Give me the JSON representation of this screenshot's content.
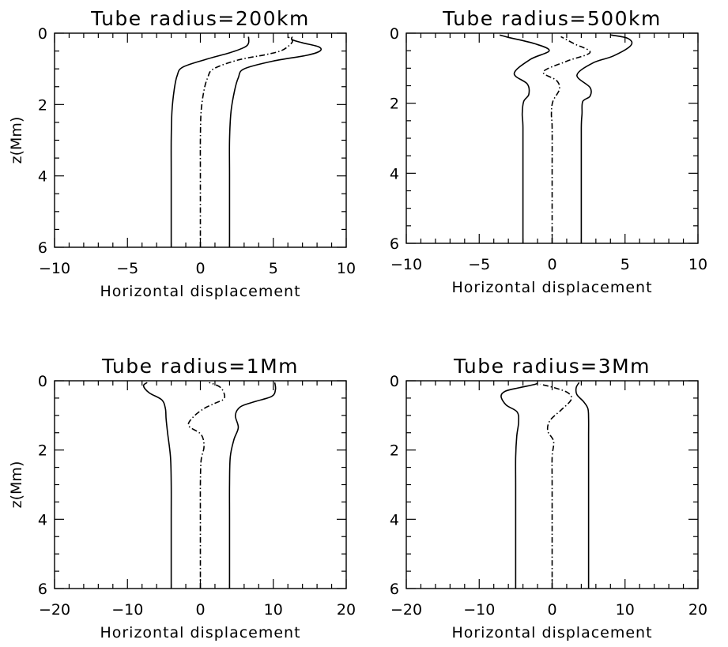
{
  "chart_data": [
    {
      "type": "line",
      "title": "Tube radius=200km",
      "xlabel": "Horizontal displacement",
      "ylabel": "z(Mm)",
      "xlim": [
        -10,
        10
      ],
      "ylim": [
        0,
        6
      ],
      "y_inverted": true,
      "x_ticks": [
        "−10",
        "−5",
        "0",
        "5",
        "10"
      ],
      "y_ticks": [
        "0",
        "2",
        "4",
        "6"
      ],
      "series": [
        {
          "style": "solid",
          "points": [
            [
              -2,
              6
            ],
            [
              -2,
              4
            ],
            [
              -2,
              3
            ],
            [
              -1.95,
              2.2
            ],
            [
              -1.8,
              1.6
            ],
            [
              -1.6,
              1.2
            ],
            [
              -1.2,
              0.95
            ],
            [
              0.5,
              0.72
            ],
            [
              2,
              0.55
            ],
            [
              3,
              0.4
            ],
            [
              3.3,
              0.28
            ],
            [
              3.3,
              0.1
            ]
          ]
        },
        {
          "style": "dashdot",
          "points": [
            [
              0,
              6
            ],
            [
              0,
              4
            ],
            [
              0,
              3
            ],
            [
              0.05,
              2.2
            ],
            [
              0.25,
              1.6
            ],
            [
              0.5,
              1.25
            ],
            [
              0.9,
              1.0
            ],
            [
              2.6,
              0.75
            ],
            [
              4.5,
              0.6
            ],
            [
              5.6,
              0.48
            ],
            [
              6.2,
              0.3
            ],
            [
              6.3,
              0.2
            ],
            [
              6,
              0.1
            ]
          ]
        },
        {
          "style": "solid",
          "points": [
            [
              2,
              6
            ],
            [
              2,
              4
            ],
            [
              2,
              3
            ],
            [
              2.1,
              2.2
            ],
            [
              2.35,
              1.6
            ],
            [
              2.6,
              1.25
            ],
            [
              3,
              1.0
            ],
            [
              5,
              0.78
            ],
            [
              7.3,
              0.62
            ],
            [
              8.2,
              0.5
            ],
            [
              8.1,
              0.38
            ],
            [
              7,
              0.27
            ],
            [
              6.3,
              0.18
            ],
            [
              6.3,
              0.1
            ]
          ]
        }
      ]
    },
    {
      "type": "line",
      "title": "Tube radius=500km",
      "xlabel": "Horizontal displacement",
      "ylabel": "",
      "xlim": [
        -10,
        10
      ],
      "ylim": [
        0,
        6
      ],
      "y_inverted": true,
      "x_ticks": [
        "−10",
        "−5",
        "0",
        "5",
        "10"
      ],
      "y_ticks": [
        "0",
        "2",
        "4",
        "6"
      ],
      "series": [
        {
          "style": "solid",
          "points": [
            [
              -2,
              6
            ],
            [
              -2,
              4
            ],
            [
              -2,
              2.7
            ],
            [
              -2.05,
              2.3
            ],
            [
              -1.95,
              1.95
            ],
            [
              -1.6,
              1.75
            ],
            [
              -1.7,
              1.45
            ],
            [
              -2.6,
              1.15
            ],
            [
              -1.5,
              0.75
            ],
            [
              -0.2,
              0.5
            ],
            [
              -1.2,
              0.3
            ],
            [
              -3,
              0.12
            ],
            [
              -3.6,
              0.05
            ]
          ]
        },
        {
          "style": "dashdot",
          "points": [
            [
              0,
              6
            ],
            [
              0,
              4
            ],
            [
              0,
              2.7
            ],
            [
              -0.05,
              2.3
            ],
            [
              0.05,
              1.95
            ],
            [
              0.5,
              1.6
            ],
            [
              0.3,
              1.35
            ],
            [
              -0.6,
              1.1
            ],
            [
              1,
              0.8
            ],
            [
              2.6,
              0.55
            ],
            [
              1.5,
              0.3
            ],
            [
              0.6,
              0.1
            ]
          ]
        },
        {
          "style": "solid",
          "points": [
            [
              2,
              6
            ],
            [
              2,
              4
            ],
            [
              2,
              2.7
            ],
            [
              2.05,
              2.3
            ],
            [
              2.1,
              1.95
            ],
            [
              2.6,
              1.8
            ],
            [
              2.6,
              1.55
            ],
            [
              1.7,
              1.2
            ],
            [
              2.8,
              0.85
            ],
            [
              4.2,
              0.65
            ],
            [
              5.4,
              0.35
            ],
            [
              5.2,
              0.15
            ],
            [
              4,
              0.05
            ]
          ]
        }
      ]
    },
    {
      "type": "line",
      "title": "Tube radius=1Mm",
      "xlabel": "Horizontal displacement",
      "ylabel": "z(Mm)",
      "xlim": [
        -20,
        20
      ],
      "ylim": [
        0,
        6
      ],
      "y_inverted": true,
      "x_ticks": [
        "−20",
        "−10",
        "0",
        "10",
        "20"
      ],
      "y_ticks": [
        "0",
        "2",
        "4",
        "6"
      ],
      "series": [
        {
          "style": "solid",
          "points": [
            [
              -4,
              6
            ],
            [
              -4,
              4
            ],
            [
              -4,
              3
            ],
            [
              -4.1,
              2.2
            ],
            [
              -4.5,
              1.5
            ],
            [
              -4.7,
              1.1
            ],
            [
              -4.8,
              0.8
            ],
            [
              -5.3,
              0.55
            ],
            [
              -7,
              0.35
            ],
            [
              -7.8,
              0.15
            ],
            [
              -7.3,
              0.05
            ]
          ]
        },
        {
          "style": "dashdot",
          "points": [
            [
              0,
              6
            ],
            [
              0,
              4
            ],
            [
              0,
              3
            ],
            [
              0.1,
              2.3
            ],
            [
              0.5,
              1.9
            ],
            [
              0.1,
              1.55
            ],
            [
              -1.6,
              1.3
            ],
            [
              -1,
              1.05
            ],
            [
              0.5,
              0.8
            ],
            [
              2,
              0.65
            ],
            [
              3.3,
              0.5
            ],
            [
              2.8,
              0.2
            ],
            [
              1.2,
              0.05
            ]
          ]
        },
        {
          "style": "solid",
          "points": [
            [
              4,
              6
            ],
            [
              4,
              4
            ],
            [
              4,
              3
            ],
            [
              4.1,
              2.2
            ],
            [
              4.6,
              1.7
            ],
            [
              5.2,
              1.35
            ],
            [
              4.8,
              1.0
            ],
            [
              5.5,
              0.75
            ],
            [
              7.5,
              0.6
            ],
            [
              9.8,
              0.45
            ],
            [
              10.3,
              0.25
            ],
            [
              10.2,
              0.05
            ]
          ]
        }
      ]
    },
    {
      "type": "line",
      "title": "Tube radius=3Mm",
      "xlabel": "Horizontal displacement",
      "ylabel": "",
      "xlim": [
        -20,
        20
      ],
      "ylim": [
        0,
        6
      ],
      "y_inverted": true,
      "x_ticks": [
        "−20",
        "−10",
        "0",
        "10",
        "20"
      ],
      "y_ticks": [
        "0",
        "2",
        "4",
        "6"
      ],
      "series": [
        {
          "style": "solid",
          "points": [
            [
              -5,
              6
            ],
            [
              -5,
              4
            ],
            [
              -5,
              3
            ],
            [
              -5,
              2.2
            ],
            [
              -4.85,
              1.6
            ],
            [
              -4.6,
              1.2
            ],
            [
              -4.8,
              0.9
            ],
            [
              -6.3,
              0.7
            ],
            [
              -7,
              0.45
            ],
            [
              -6.4,
              0.3
            ],
            [
              -4.5,
              0.2
            ],
            [
              -2.3,
              0.1
            ],
            [
              -2,
              0.05
            ]
          ]
        },
        {
          "style": "dashdot",
          "points": [
            [
              0,
              6
            ],
            [
              0,
              4
            ],
            [
              0,
              3
            ],
            [
              0,
              2.2
            ],
            [
              0.2,
              1.75
            ],
            [
              -0.6,
              1.45
            ],
            [
              -0.3,
              1.15
            ],
            [
              1.2,
              0.85
            ],
            [
              2.6,
              0.55
            ],
            [
              2.2,
              0.35
            ],
            [
              0.3,
              0.2
            ],
            [
              -1.6,
              0.1
            ]
          ]
        },
        {
          "style": "solid",
          "points": [
            [
              5,
              6
            ],
            [
              5,
              4
            ],
            [
              5,
              3
            ],
            [
              5,
              2.2
            ],
            [
              5,
              1.6
            ],
            [
              5,
              1.1
            ],
            [
              4.9,
              0.8
            ],
            [
              4.3,
              0.6
            ],
            [
              3.4,
              0.4
            ],
            [
              3.3,
              0.2
            ],
            [
              3.7,
              0.05
            ]
          ]
        }
      ]
    }
  ]
}
